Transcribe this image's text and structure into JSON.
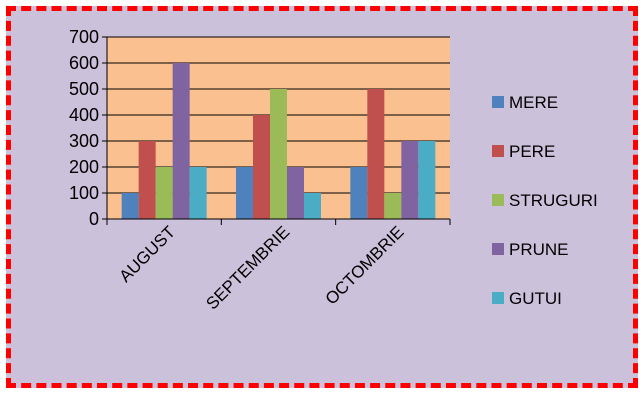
{
  "colors": {
    "frame_background": "#ccc1da",
    "frame_border": "#ff0000",
    "plot_background": "#fac090",
    "gridline": "#000000"
  },
  "chart_data": {
    "type": "bar",
    "categories": [
      "AUGUST",
      "SEPTEMBRIE",
      "OCTOMBRIE"
    ],
    "series": [
      {
        "name": "MERE",
        "color": "#4f81bd",
        "values": [
          100,
          200,
          200
        ]
      },
      {
        "name": "PERE",
        "color": "#c0504d",
        "values": [
          300,
          400,
          500
        ]
      },
      {
        "name": "STRUGURI",
        "color": "#9bbb59",
        "values": [
          200,
          500,
          100
        ]
      },
      {
        "name": "PRUNE",
        "color": "#8064a2",
        "values": [
          600,
          200,
          300
        ]
      },
      {
        "name": "GUTUI",
        "color": "#4bacc6",
        "values": [
          200,
          100,
          300
        ]
      }
    ],
    "y_ticks": [
      "0",
      "100",
      "200",
      "300",
      "400",
      "500",
      "600",
      "700"
    ],
    "ylim": [
      0,
      700
    ],
    "grid": true,
    "legend_position": "right"
  }
}
